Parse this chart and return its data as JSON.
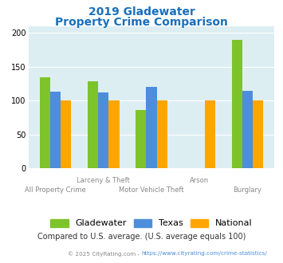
{
  "title_line1": "2019 Gladewater",
  "title_line2": "Property Crime Comparison",
  "categories": [
    "All Property Crime",
    "Larceny & Theft",
    "Motor Vehicle Theft",
    "Arson",
    "Burglary"
  ],
  "x_labels_top": [
    "",
    "Larceny & Theft",
    "",
    "Arson",
    ""
  ],
  "x_labels_bot": [
    "All Property Crime",
    "",
    "Motor Vehicle Theft",
    "",
    "Burglary"
  ],
  "gladewater": [
    134,
    129,
    86,
    0,
    190
  ],
  "texas": [
    113,
    112,
    121,
    0,
    115
  ],
  "national": [
    100,
    100,
    100,
    100,
    100
  ],
  "colors": {
    "gladewater": "#7dc42a",
    "texas": "#4c8edc",
    "national": "#ffa500",
    "background": "#ddeef3",
    "title": "#1a6fba",
    "note": "#333333",
    "footer": "#888888",
    "footer_link": "#4c8edc",
    "xlabel_top": "#888888",
    "xlabel_bot": "#888888"
  },
  "ylim": [
    0,
    210
  ],
  "yticks": [
    0,
    50,
    100,
    150,
    200
  ],
  "legend_labels": [
    "Gladewater",
    "Texas",
    "National"
  ],
  "note": "Compared to U.S. average. (U.S. average equals 100)",
  "footer_plain": "© 2025 CityRating.com - ",
  "footer_link": "https://www.cityrating.com/crime-statistics/",
  "bar_width": 0.22
}
